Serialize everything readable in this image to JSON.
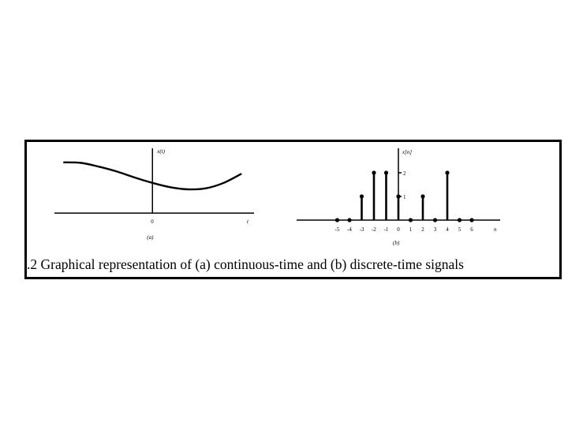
{
  "caption": ".2  Graphical representation of (a) continuous-time and (b) discrete-time signals",
  "chart_data": [
    {
      "type": "line",
      "panel_label": "(a)",
      "ylabel": "x(t)",
      "xlabel": "t",
      "origin_label": "0",
      "x": [
        -5,
        -4,
        -3,
        -2,
        -1,
        0,
        1,
        2,
        3,
        4,
        5
      ],
      "y": [
        1.88,
        1.86,
        1.72,
        1.54,
        1.32,
        1.12,
        0.96,
        0.88,
        0.92,
        1.12,
        1.46
      ],
      "xlim": [
        -5.5,
        5.7
      ],
      "ylim": [
        -0.2,
        2.4
      ],
      "grid": false
    },
    {
      "type": "stem",
      "panel_label": "(b)",
      "ylabel": "x[n]",
      "xlabel": "n",
      "x": [
        -5,
        -4,
        -3,
        -2,
        -1,
        0,
        1,
        2,
        3,
        4,
        5,
        6
      ],
      "y": [
        0,
        0,
        1,
        2,
        2,
        1,
        0,
        1,
        0,
        2,
        0,
        0
      ],
      "tick_labels": [
        "-5",
        "-4",
        "-3",
        "-2",
        "-1",
        "0",
        "1",
        "2",
        "3",
        "4",
        "5",
        "6"
      ],
      "y_tick_labels": [
        "1",
        "2"
      ],
      "y_ticks": [
        1,
        2
      ],
      "grid": false
    }
  ]
}
